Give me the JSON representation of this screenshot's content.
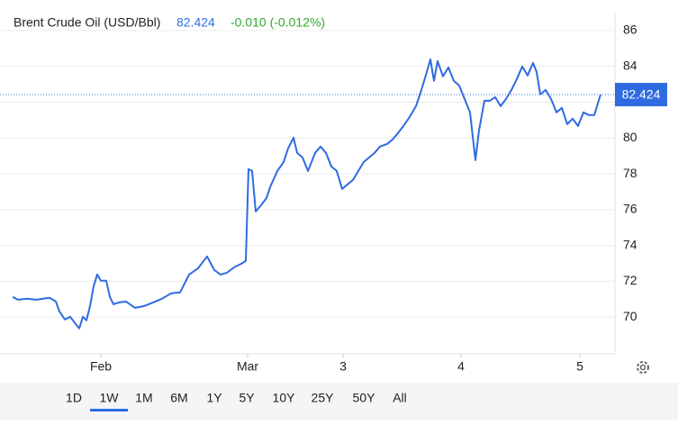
{
  "chart_data": {
    "type": "line",
    "title": "Brent Crude Oil (USD/Bbl)",
    "change": "-0.010 (-0.012%)",
    "x": [
      0,
      6,
      16,
      26,
      41,
      48,
      52,
      58,
      64,
      70,
      74,
      78,
      82,
      86,
      90,
      94,
      98,
      104,
      108,
      112,
      118,
      126,
      136,
      146,
      156,
      166,
      176,
      186,
      191,
      196,
      206,
      216,
      224,
      231,
      238,
      246,
      254,
      259,
      262,
      266,
      270,
      276,
      282,
      286,
      294,
      301,
      306,
      312,
      316,
      322,
      328,
      336,
      342,
      348,
      354,
      360,
      366,
      372,
      378,
      384,
      390,
      396,
      402,
      408,
      416,
      422,
      428,
      434,
      441,
      448,
      454,
      460,
      464,
      468,
      472,
      478,
      484,
      490,
      496,
      502,
      508,
      514,
      518,
      524,
      530,
      536,
      542,
      548,
      554,
      560,
      566,
      572,
      578,
      582,
      586,
      592,
      598,
      604,
      610,
      616,
      622,
      628,
      634,
      640,
      646,
      653
    ],
    "series": [
      {
        "name": "Brent Crude Oil",
        "color": "#2f6be0",
        "values": [
          71.13,
          70.97,
          71.03,
          70.97,
          71.08,
          70.87,
          70.32,
          69.87,
          70.02,
          69.62,
          69.37,
          70.02,
          69.82,
          70.62,
          71.73,
          72.38,
          72.03,
          72.03,
          71.13,
          70.72,
          70.82,
          70.87,
          70.52,
          70.62,
          70.82,
          71.03,
          71.33,
          71.38,
          71.88,
          72.38,
          72.73,
          73.39,
          72.63,
          72.38,
          72.48,
          72.78,
          72.98,
          73.14,
          78.26,
          78.16,
          75.9,
          76.25,
          76.65,
          77.26,
          78.16,
          78.66,
          79.42,
          80.02,
          79.17,
          78.91,
          78.16,
          79.17,
          79.52,
          79.17,
          78.41,
          78.16,
          77.16,
          77.41,
          77.66,
          78.16,
          78.66,
          78.91,
          79.17,
          79.52,
          79.67,
          79.92,
          80.27,
          80.67,
          81.18,
          81.78,
          82.68,
          83.69,
          84.39,
          83.19,
          84.29,
          83.44,
          83.94,
          83.19,
          82.93,
          82.18,
          81.43,
          78.76,
          80.42,
          82.08,
          82.08,
          82.28,
          81.78,
          82.18,
          82.68,
          83.29,
          83.99,
          83.49,
          84.19,
          83.69,
          82.43,
          82.68,
          82.18,
          81.43,
          81.68,
          80.77,
          81.08,
          80.67,
          81.43,
          81.28,
          81.28,
          82.424
        ]
      }
    ],
    "xlim": [
      0,
      669
    ],
    "xticks": [
      {
        "value": 98,
        "label": "Feb"
      },
      {
        "value": 261,
        "label": "Mar"
      },
      {
        "value": 367,
        "label": "3"
      },
      {
        "value": 498,
        "label": "4"
      },
      {
        "value": 630,
        "label": "5"
      }
    ],
    "ylim": [
      68,
      87
    ],
    "yticks": [
      70,
      72,
      74,
      76,
      78,
      80,
      82,
      84,
      86
    ],
    "grid": true,
    "ranges": [
      "1D",
      "1W",
      "1M",
      "6M",
      "1Y",
      "5Y",
      "10Y",
      "25Y",
      "50Y",
      "All"
    ],
    "selected_range": 1
  }
}
